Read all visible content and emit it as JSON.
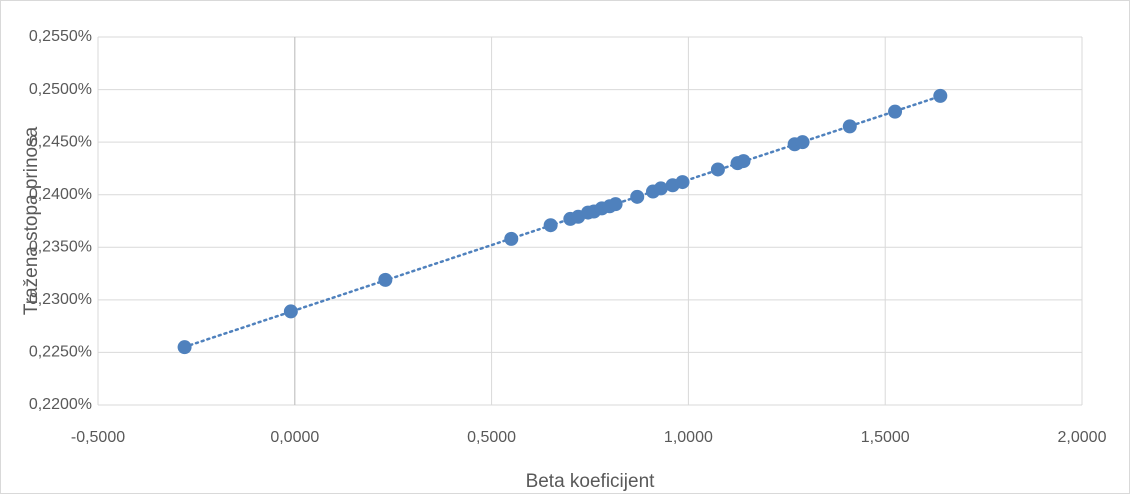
{
  "chart_data": {
    "type": "scatter",
    "x_label": "Beta koeficijent",
    "y_label": "Tražena stopa prinosa",
    "series": [
      {
        "name": "Tražena stopa prinosa",
        "color": "#4f81bd",
        "x": [
          -0.28,
          -0.01,
          0.23,
          0.55,
          0.65,
          0.7,
          0.72,
          0.745,
          0.76,
          0.78,
          0.8,
          0.815,
          0.87,
          0.91,
          0.93,
          0.96,
          0.985,
          1.075,
          1.125,
          1.14,
          1.27,
          1.29,
          1.41,
          1.525,
          1.64
        ],
        "values": [
          0.2255,
          0.2289,
          0.2319,
          0.2358,
          0.2371,
          0.2377,
          0.2379,
          0.2383,
          0.2384,
          0.2387,
          0.2389,
          0.2391,
          0.2398,
          0.2403,
          0.2406,
          0.2409,
          0.2412,
          0.2424,
          0.243,
          0.2432,
          0.2448,
          0.245,
          0.2465,
          0.2479,
          0.2494
        ]
      }
    ],
    "trendline": true,
    "grid": true,
    "xlim": [
      -0.5,
      2.0
    ],
    "xticks": [
      {
        "value": -0.5,
        "label": "-0,5000"
      },
      {
        "value": 0,
        "label": "0,0000"
      },
      {
        "value": 0.5,
        "label": "0,5000"
      },
      {
        "value": 1.0,
        "label": "1,0000"
      },
      {
        "value": 1.5,
        "label": "1,5000"
      },
      {
        "value": 2.0,
        "label": "2,0000"
      }
    ],
    "ylim": [
      0.22,
      0.255
    ],
    "yticks": [
      {
        "value": 0.22,
        "label": "0,2200%"
      },
      {
        "value": 0.225,
        "label": "0,2250%"
      },
      {
        "value": 0.23,
        "label": "0,2300%"
      },
      {
        "value": 0.235,
        "label": "0,2350%"
      },
      {
        "value": 0.24,
        "label": "0,2400%"
      },
      {
        "value": 0.245,
        "label": "0,2450%"
      },
      {
        "value": 0.25,
        "label": "0,2500%"
      },
      {
        "value": 0.255,
        "label": "0,2550%"
      }
    ]
  }
}
